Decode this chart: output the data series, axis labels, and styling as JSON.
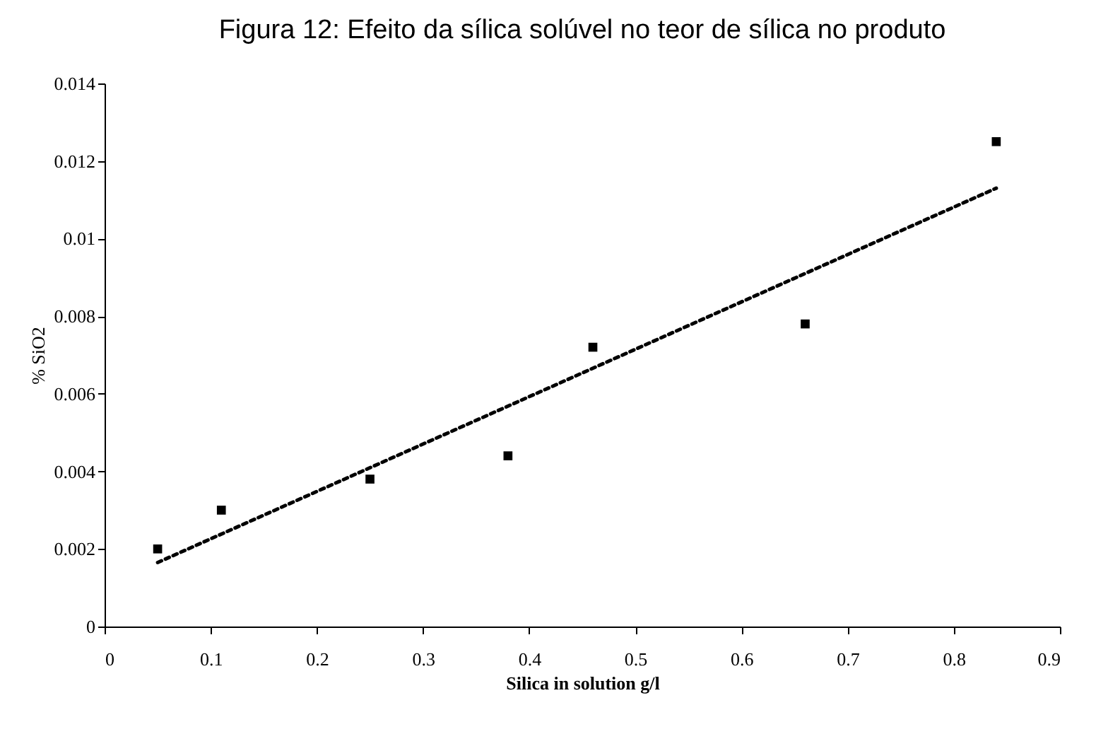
{
  "chart_data": {
    "type": "scatter",
    "title": "Figura 12: Efeito da sílica solúvel no teor de sílica no produto",
    "xlabel": "Silica in solution g/l",
    "ylabel": "% SiO2",
    "xlim": [
      0,
      0.9
    ],
    "xticks": [
      0,
      0.1,
      0.2,
      0.3,
      0.4,
      0.5,
      0.6,
      0.7,
      0.8,
      0.9
    ],
    "ylim": [
      0,
      0.014
    ],
    "yticks": [
      0,
      0.002,
      0.004,
      0.006,
      0.008,
      0.01,
      0.012,
      0.014
    ],
    "grid": false,
    "series": [
      {
        "color": "#000000",
        "marker": "square",
        "x": [
          0.05,
          0.11,
          0.25,
          0.38,
          0.46,
          0.66,
          0.84
        ],
        "values": [
          0.002,
          0.003,
          0.0038,
          0.0044,
          0.0072,
          0.0078,
          0.0125
        ]
      },
      {
        "type": "line",
        "color": "#000000",
        "line_style": "dotted",
        "x": [
          0.05,
          0.84
        ],
        "values": [
          0.00165,
          0.0113
        ]
      }
    ]
  }
}
